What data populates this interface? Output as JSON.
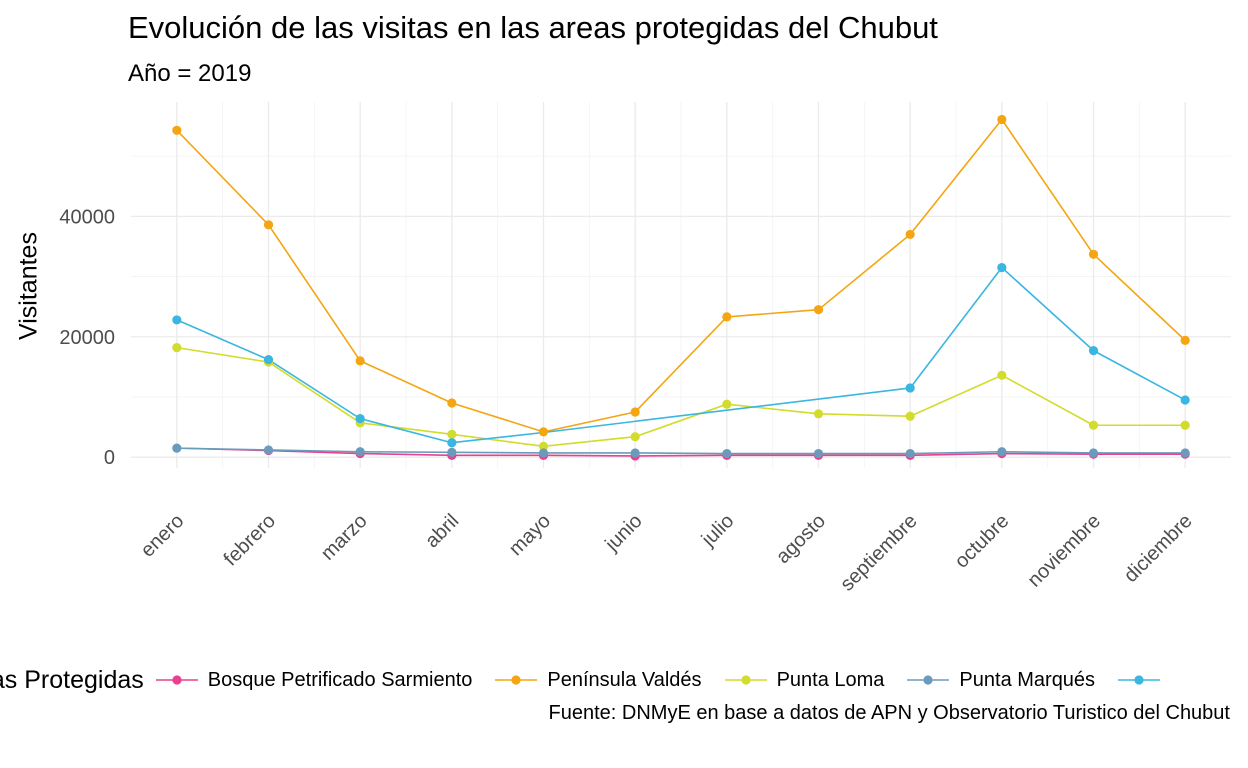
{
  "title": "Evolución de las visitas en las areas protegidas del Chubut",
  "subtitle": "Año = 2019",
  "caption": "Fuente: DNMyE en base a datos de APN y Observatorio Turistico del Chubut",
  "chart_data": {
    "type": "line",
    "title": "Evolución de las visitas en las areas protegidas del Chubut",
    "subtitle": "Año = 2019",
    "xlabel": "",
    "ylabel": "Visitantes",
    "categories": [
      "enero",
      "febrero",
      "marzo",
      "abril",
      "mayo",
      "junio",
      "julio",
      "agosto",
      "septiembre",
      "octubre",
      "noviembre",
      "diciembre"
    ],
    "ylim": [
      -1800,
      59000
    ],
    "y_ticks": [
      0,
      20000,
      40000
    ],
    "y_tick_labels": [
      "0",
      "20000",
      "40000"
    ],
    "grid": true,
    "legend_title": "Áreas Protegidas",
    "legend_position": "bottom",
    "series": [
      {
        "name": "Bosque Petrificado Sarmiento",
        "color": "#e8418f",
        "values": [
          1500,
          1100,
          600,
          300,
          300,
          200,
          300,
          300,
          300,
          600,
          500,
          500
        ],
        "markers": [
          false,
          true,
          true,
          true,
          true,
          true,
          true,
          true,
          true,
          true,
          true,
          true
        ]
      },
      {
        "name": "Península Valdés",
        "color": "#f4a511",
        "values": [
          54300,
          38600,
          16000,
          9000,
          4200,
          7500,
          23300,
          24500,
          37000,
          56100,
          33700,
          19400
        ],
        "markers": [
          true,
          true,
          true,
          true,
          true,
          true,
          true,
          true,
          true,
          true,
          true,
          true
        ]
      },
      {
        "name": "Punta Loma",
        "color": "#d1dc2c",
        "values": [
          18200,
          15800,
          5700,
          3800,
          1800,
          3400,
          8800,
          7200,
          6800,
          13600,
          5300,
          5300
        ],
        "markers": [
          true,
          true,
          true,
          true,
          true,
          true,
          true,
          true,
          true,
          true,
          true,
          true
        ]
      },
      {
        "name": "Punta Marqués",
        "color": "#6a9bbb",
        "values": [
          1500,
          1200,
          900,
          800,
          700,
          700,
          600,
          600,
          600,
          900,
          700,
          700
        ],
        "markers": [
          true,
          true,
          true,
          true,
          true,
          true,
          true,
          true,
          true,
          true,
          true,
          true
        ]
      },
      {
        "name": "",
        "color": "#3ab6e0",
        "values": [
          22800,
          16200,
          6400,
          2400,
          4100,
          null,
          null,
          null,
          11500,
          31500,
          17700,
          9500
        ],
        "markers": [
          true,
          true,
          true,
          true,
          false,
          false,
          false,
          false,
          true,
          true,
          true,
          true
        ]
      }
    ]
  }
}
